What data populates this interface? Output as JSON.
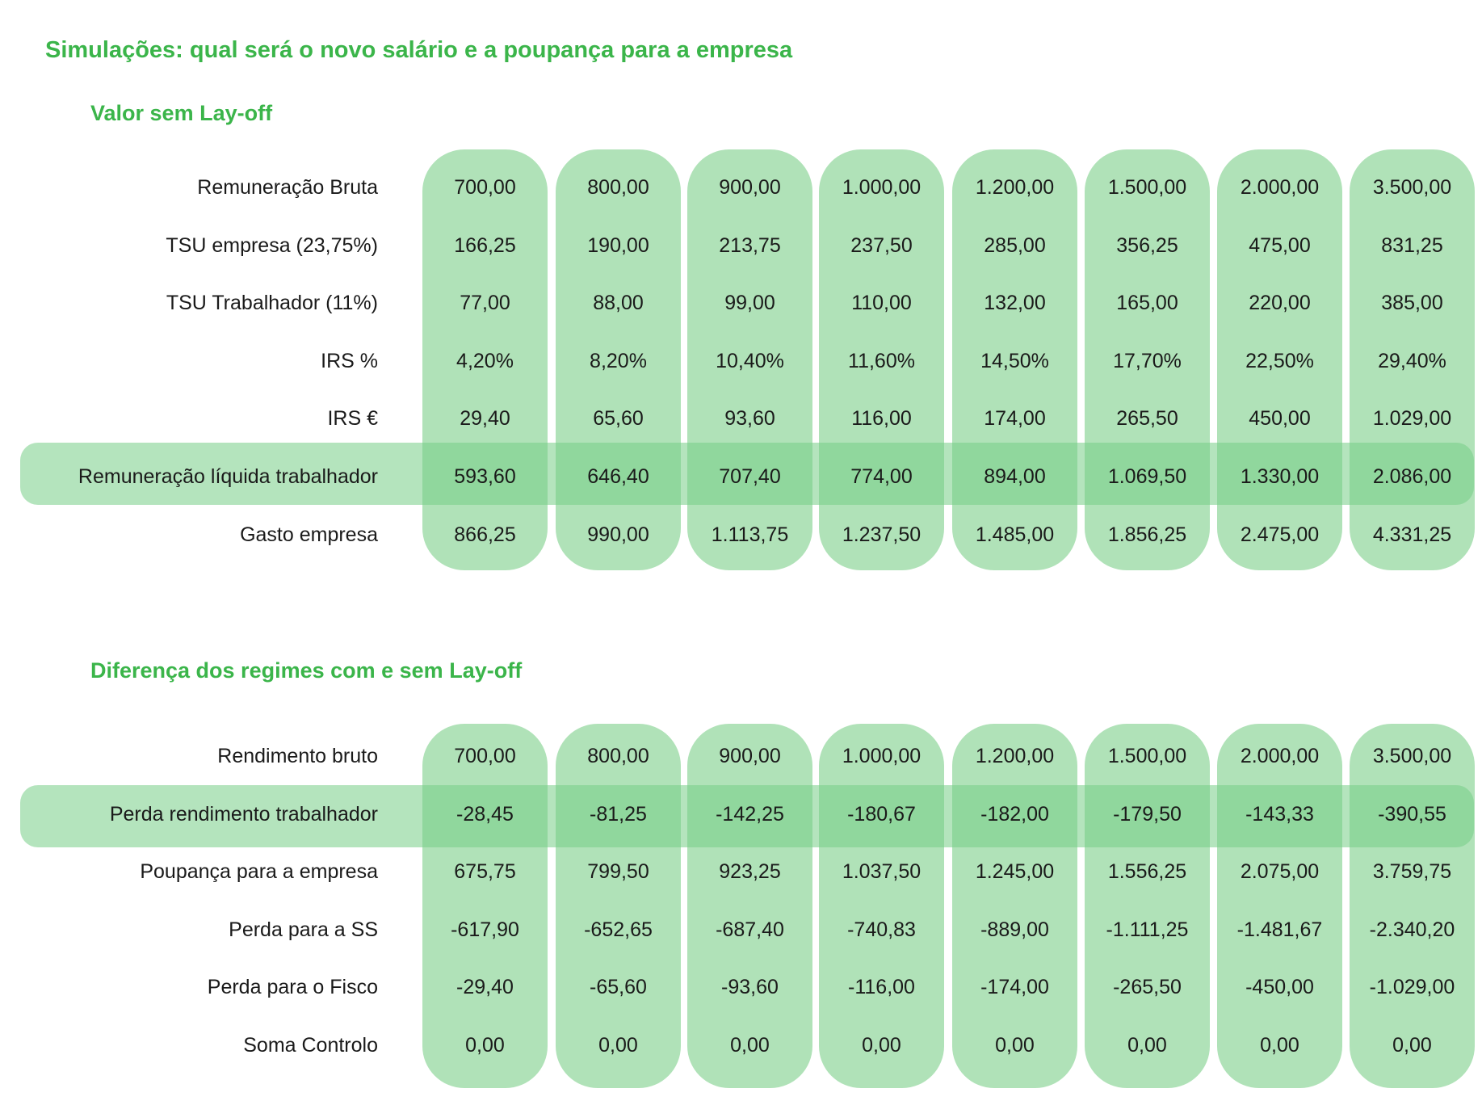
{
  "title": "Simulações: qual será o novo salário e a poupança para a empresa",
  "section1": {
    "title": "Valor sem Lay-off",
    "rows": [
      {
        "label": "Remuneração Bruta",
        "values": [
          "700,00",
          "800,00",
          "900,00",
          "1.000,00",
          "1.200,00",
          "1.500,00",
          "2.000,00",
          "3.500,00"
        ]
      },
      {
        "label": "TSU empresa (23,75%)",
        "values": [
          "166,25",
          "190,00",
          "213,75",
          "237,50",
          "285,00",
          "356,25",
          "475,00",
          "831,25"
        ]
      },
      {
        "label": "TSU Trabalhador (11%)",
        "values": [
          "77,00",
          "88,00",
          "99,00",
          "110,00",
          "132,00",
          "165,00",
          "220,00",
          "385,00"
        ]
      },
      {
        "label": "IRS %",
        "values": [
          "4,20%",
          "8,20%",
          "10,40%",
          "11,60%",
          "14,50%",
          "17,70%",
          "22,50%",
          "29,40%"
        ]
      },
      {
        "label": "IRS €",
        "values": [
          "29,40",
          "65,60",
          "93,60",
          "116,00",
          "174,00",
          "265,50",
          "450,00",
          "1.029,00"
        ]
      },
      {
        "label": "Remuneração líquida trabalhador",
        "values": [
          "593,60",
          "646,40",
          "707,40",
          "774,00",
          "894,00",
          "1.069,50",
          "1.330,00",
          "2.086,00"
        ]
      },
      {
        "label": "Gasto empresa",
        "values": [
          "866,25",
          "990,00",
          "1.113,75",
          "1.237,50",
          "1.485,00",
          "1.856,25",
          "2.475,00",
          "4.331,25"
        ]
      }
    ]
  },
  "section2": {
    "title": "Diferença dos regimes com e sem Lay-off",
    "rows": [
      {
        "label": "Rendimento bruto",
        "values": [
          "700,00",
          "800,00",
          "900,00",
          "1.000,00",
          "1.200,00",
          "1.500,00",
          "2.000,00",
          "3.500,00"
        ]
      },
      {
        "label": "Perda rendimento trabalhador",
        "values": [
          "-28,45",
          "-81,25",
          "-142,25",
          "-180,67",
          "-182,00",
          "-179,50",
          "-143,33",
          "-390,55"
        ]
      },
      {
        "label": "Poupança para a empresa",
        "values": [
          "675,75",
          "799,50",
          "923,25",
          "1.037,50",
          "1.245,00",
          "1.556,25",
          "2.075,00",
          "3.759,75"
        ]
      },
      {
        "label": "Perda para a SS",
        "values": [
          "-617,90",
          "-652,65",
          "-687,40",
          "-740,83",
          "-889,00",
          "-1.111,25",
          "-1.481,67",
          "-2.340,20"
        ]
      },
      {
        "label": "Perda para o Fisco",
        "values": [
          "-29,40",
          "-65,60",
          "-93,60",
          "-116,00",
          "-174,00",
          "-265,50",
          "-450,00",
          "-1.029,00"
        ]
      },
      {
        "label": "Soma Controlo",
        "values": [
          "0,00",
          "0,00",
          "0,00",
          "0,00",
          "0,00",
          "0,00",
          "0,00",
          "0,00"
        ]
      }
    ]
  }
}
